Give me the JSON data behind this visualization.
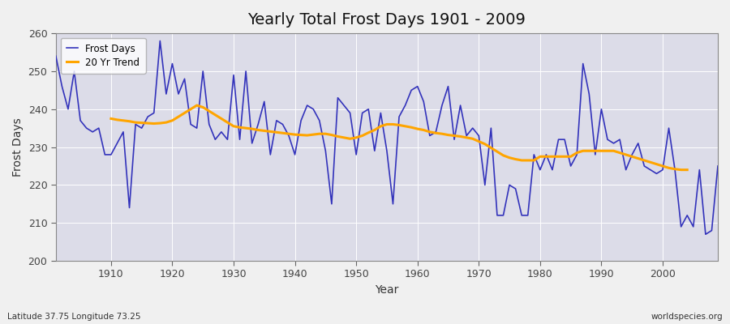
{
  "title": "Yearly Total Frost Days 1901 - 2009",
  "xlabel": "Year",
  "ylabel": "Frost Days",
  "bottom_left_label": "Latitude 37.75 Longitude 73.25",
  "bottom_right_label": "worldspecies.org",
  "ylim": [
    200,
    260
  ],
  "xlim": [
    1901,
    2009
  ],
  "frost_days_color": "#3333bb",
  "trend_color": "#ffa500",
  "bg_color": "#dcdce8",
  "grid_color": "#ffffff",
  "years": [
    1901,
    1902,
    1903,
    1904,
    1905,
    1906,
    1907,
    1908,
    1909,
    1910,
    1911,
    1912,
    1913,
    1914,
    1915,
    1916,
    1917,
    1918,
    1919,
    1920,
    1921,
    1922,
    1923,
    1924,
    1925,
    1926,
    1927,
    1928,
    1929,
    1930,
    1931,
    1932,
    1933,
    1934,
    1935,
    1936,
    1937,
    1938,
    1939,
    1940,
    1941,
    1942,
    1943,
    1944,
    1945,
    1946,
    1947,
    1948,
    1949,
    1950,
    1951,
    1952,
    1953,
    1954,
    1955,
    1956,
    1957,
    1958,
    1959,
    1960,
    1961,
    1962,
    1963,
    1964,
    1965,
    1966,
    1967,
    1968,
    1969,
    1970,
    1971,
    1972,
    1973,
    1974,
    1975,
    1976,
    1977,
    1978,
    1979,
    1980,
    1981,
    1982,
    1983,
    1984,
    1985,
    1986,
    1987,
    1988,
    1989,
    1990,
    1991,
    1992,
    1993,
    1994,
    1995,
    1996,
    1997,
    1998,
    1999,
    2000,
    2001,
    2002,
    2003,
    2004,
    2005,
    2006,
    2007,
    2008,
    2009
  ],
  "frost_days": [
    254,
    246,
    240,
    250,
    237,
    235,
    234,
    235,
    228,
    228,
    231,
    234,
    214,
    236,
    235,
    238,
    239,
    258,
    244,
    252,
    244,
    248,
    236,
    235,
    250,
    236,
    232,
    234,
    232,
    249,
    232,
    250,
    231,
    236,
    242,
    228,
    237,
    236,
    233,
    228,
    237,
    241,
    240,
    237,
    229,
    215,
    243,
    241,
    239,
    228,
    239,
    240,
    229,
    239,
    229,
    215,
    238,
    241,
    245,
    246,
    242,
    233,
    234,
    241,
    246,
    232,
    241,
    233,
    235,
    233,
    220,
    235,
    212,
    212,
    220,
    219,
    212,
    212,
    228,
    224,
    228,
    224,
    232,
    232,
    225,
    228,
    252,
    244,
    228,
    240,
    232,
    231,
    232,
    224,
    228,
    231,
    225,
    224,
    223,
    224,
    235,
    224,
    209,
    212,
    209,
    224,
    207,
    208,
    225
  ],
  "trend_start": 1910,
  "trend_values": [
    237.5,
    237.2,
    237.0,
    236.8,
    236.5,
    236.4,
    236.3,
    236.2,
    236.3,
    236.5,
    237.0,
    238.0,
    239.0,
    240.0,
    241.0,
    240.5,
    239.5,
    238.5,
    237.5,
    236.5,
    235.5,
    235.2,
    235.0,
    234.8,
    234.5,
    234.3,
    234.1,
    233.9,
    233.7,
    233.5,
    233.3,
    233.2,
    233.1,
    233.3,
    233.5,
    233.5,
    233.2,
    232.8,
    232.5,
    232.2,
    232.5,
    233.0,
    233.8,
    234.5,
    235.5,
    236.0,
    236.0,
    235.8,
    235.5,
    235.2,
    234.8,
    234.5,
    234.0,
    233.7,
    233.5,
    233.2,
    233.0,
    232.8,
    232.5,
    232.2,
    231.5,
    230.8,
    229.8,
    228.8,
    227.8,
    227.2,
    226.8,
    226.5,
    226.5,
    226.5,
    227.5,
    227.5,
    227.5,
    227.5,
    227.5,
    227.5,
    228.5,
    229.0,
    229.0,
    229.0,
    229.0,
    229.0,
    229.0,
    228.5,
    228.0,
    227.5,
    227.0,
    226.5,
    226.0,
    225.5,
    225.0,
    224.5,
    224.2,
    224.0,
    224.0
  ]
}
